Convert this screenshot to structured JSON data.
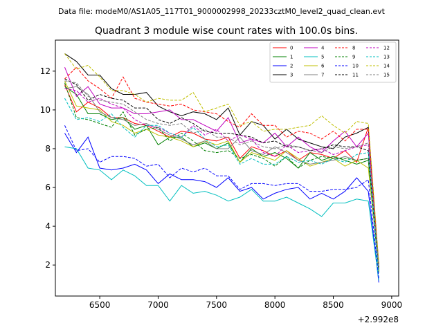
{
  "header": {
    "data_file": "Data file: modeM0/AS1A05_117T01_9000002998_20233cztM0_level2_quad_clean.evt"
  },
  "chart_data": {
    "type": "line",
    "title": "Quadrant 3 module wise count rates with 100.0s bins.",
    "xlabel": "",
    "ylabel": "",
    "x_offset_label": "+2.992e8",
    "x_offset": 299200000,
    "xlim": [
      6120,
      9060
    ],
    "ylim": [
      0.4,
      13.6
    ],
    "x_ticks": [
      6500,
      7000,
      7500,
      8000,
      8500,
      9000
    ],
    "y_ticks": [
      2,
      4,
      6,
      8,
      10,
      12
    ],
    "x": [
      6200,
      6300,
      6400,
      6500,
      6600,
      6700,
      6800,
      6900,
      7000,
      7100,
      7200,
      7300,
      7400,
      7500,
      7600,
      7700,
      7800,
      7900,
      8000,
      8100,
      8200,
      8300,
      8400,
      8500,
      8600,
      8700,
      8800,
      8890
    ],
    "legend_position": "top-right",
    "series": [
      {
        "name": "0",
        "color": "#ff0000",
        "dash": false,
        "values": [
          11.3,
          9.9,
          10.4,
          10.1,
          9.6,
          9.6,
          9.3,
          9.2,
          8.9,
          8.6,
          8.9,
          8.8,
          8.5,
          8.4,
          8.6,
          7.5,
          8.1,
          7.9,
          7.6,
          7.9,
          7.4,
          7.8,
          7.7,
          7.5,
          7.9,
          7.3,
          9.1,
          1.7
        ]
      },
      {
        "name": "1",
        "color": "#008000",
        "dash": false,
        "values": [
          11.2,
          10.8,
          9.8,
          9.8,
          9.5,
          9.6,
          9.0,
          9.2,
          8.2,
          8.6,
          8.6,
          8.1,
          8.3,
          8.0,
          8.3,
          7.3,
          8.0,
          7.6,
          7.8,
          7.5,
          7.0,
          7.8,
          7.4,
          7.6,
          7.4,
          7.2,
          7.4,
          1.6
        ]
      },
      {
        "name": "2",
        "color": "#0000ff",
        "dash": false,
        "values": [
          8.8,
          7.8,
          8.6,
          7.0,
          6.9,
          7.0,
          7.2,
          6.9,
          6.2,
          6.7,
          6.4,
          6.4,
          6.3,
          6.0,
          6.5,
          5.8,
          6.0,
          5.4,
          5.7,
          5.9,
          6.0,
          5.4,
          5.7,
          5.4,
          5.8,
          6.5,
          5.8,
          1.1
        ]
      },
      {
        "name": "3",
        "color": "#000000",
        "dash": false,
        "values": [
          12.9,
          12.5,
          11.8,
          11.8,
          11.1,
          10.8,
          10.8,
          10.9,
          10.2,
          9.9,
          9.7,
          9.9,
          9.8,
          9.5,
          10.1,
          8.7,
          9.4,
          9.2,
          8.5,
          9.0,
          8.5,
          8.3,
          8.1,
          8.0,
          8.6,
          8.8,
          9.1,
          1.9
        ]
      },
      {
        "name": "4",
        "color": "#bf00bf",
        "dash": false,
        "values": [
          12.2,
          10.7,
          11.2,
          10.3,
          10.1,
          10.1,
          9.8,
          9.8,
          9.9,
          10.0,
          9.5,
          9.5,
          9.2,
          8.9,
          9.6,
          8.3,
          8.5,
          8.3,
          8.8,
          8.1,
          8.6,
          8.1,
          7.8,
          8.4,
          8.9,
          8.1,
          8.8,
          1.8
        ]
      },
      {
        "name": "5",
        "color": "#00bfbf",
        "dash": false,
        "values": [
          8.1,
          8.0,
          7.0,
          6.9,
          6.4,
          6.9,
          6.6,
          6.1,
          6.1,
          5.3,
          6.1,
          5.7,
          5.8,
          5.6,
          5.3,
          5.5,
          5.9,
          5.3,
          5.3,
          5.5,
          5.2,
          4.9,
          4.5,
          5.2,
          5.2,
          5.4,
          5.3,
          1.2
        ]
      },
      {
        "name": "6",
        "color": "#bfbf00",
        "dash": false,
        "values": [
          11.5,
          10.2,
          10.1,
          10.0,
          9.4,
          9.2,
          8.8,
          9.0,
          8.7,
          8.6,
          8.4,
          8.1,
          8.4,
          8.2,
          8.4,
          7.3,
          7.8,
          7.6,
          7.4,
          7.9,
          7.5,
          7.1,
          7.3,
          7.5,
          7.1,
          7.4,
          7.0,
          1.9
        ]
      },
      {
        "name": "7",
        "color": "#808080",
        "dash": false,
        "values": [
          11.1,
          11.2,
          10.8,
          9.9,
          9.6,
          9.5,
          9.2,
          9.3,
          9.0,
          8.7,
          8.5,
          8.2,
          8.4,
          8.0,
          8.0,
          8.6,
          7.9,
          7.7,
          8.1,
          7.8,
          7.4,
          7.2,
          7.3,
          7.4,
          7.6,
          7.4,
          7.5,
          1.8
        ]
      },
      {
        "name": "8",
        "color": "#ff0000",
        "dash": true,
        "values": [
          11.6,
          12.2,
          11.5,
          11.1,
          10.6,
          11.7,
          10.6,
          10.4,
          10.3,
          10.2,
          10.3,
          10.0,
          9.9,
          9.8,
          9.4,
          9.1,
          9.8,
          9.2,
          9.2,
          8.6,
          8.9,
          8.8,
          8.5,
          8.9,
          8.4,
          9.0,
          9.0,
          2.0
        ]
      },
      {
        "name": "9",
        "color": "#008000",
        "dash": true,
        "values": [
          11.4,
          9.6,
          9.5,
          9.3,
          9.1,
          9.9,
          8.7,
          9.0,
          9.1,
          8.4,
          8.8,
          8.4,
          7.9,
          7.8,
          7.9,
          7.5,
          7.7,
          7.5,
          7.1,
          7.6,
          7.0,
          7.4,
          7.6,
          7.5,
          7.5,
          7.4,
          7.5,
          1.7
        ]
      },
      {
        "name": "10",
        "color": "#0000ff",
        "dash": true,
        "values": [
          9.2,
          7.9,
          8.0,
          7.3,
          7.6,
          7.6,
          7.5,
          7.1,
          7.2,
          6.5,
          7.0,
          6.8,
          7.0,
          6.6,
          6.6,
          5.9,
          6.2,
          6.2,
          6.1,
          6.2,
          6.2,
          5.8,
          5.8,
          5.9,
          5.9,
          6.0,
          6.4,
          1.3
        ]
      },
      {
        "name": "11",
        "color": "#000000",
        "dash": true,
        "values": [
          11.6,
          11.3,
          10.5,
          10.8,
          10.6,
          10.5,
          10.1,
          10.1,
          9.5,
          9.3,
          9.6,
          9.3,
          8.9,
          8.8,
          8.8,
          8.7,
          8.6,
          8.3,
          8.4,
          8.1,
          8.1,
          7.9,
          8.0,
          8.2,
          8.1,
          8.1,
          7.9,
          1.9
        ]
      },
      {
        "name": "12",
        "color": "#bf00bf",
        "dash": true,
        "values": [
          11.1,
          11.0,
          10.4,
          10.6,
          10.3,
          10.1,
          9.5,
          9.2,
          9.1,
          8.8,
          8.6,
          9.2,
          8.7,
          9.0,
          8.4,
          8.7,
          8.5,
          7.8,
          7.6,
          8.2,
          7.8,
          7.9,
          8.0,
          7.7,
          7.9,
          8.1,
          8.2,
          1.9
        ]
      },
      {
        "name": "13",
        "color": "#00bfbf",
        "dash": true,
        "values": [
          10.6,
          9.5,
          9.6,
          9.4,
          9.8,
          9.1,
          8.6,
          9.2,
          9.2,
          8.8,
          8.6,
          9.1,
          8.5,
          8.1,
          8.2,
          7.2,
          7.5,
          7.2,
          7.2,
          7.6,
          7.3,
          7.4,
          7.2,
          7.5,
          7.3,
          7.7,
          7.8,
          1.6
        ]
      },
      {
        "name": "14",
        "color": "#bfbf00",
        "dash": true,
        "values": [
          12.9,
          12.1,
          12.3,
          11.7,
          11.0,
          11.0,
          10.8,
          10.4,
          10.6,
          10.5,
          10.5,
          10.9,
          9.9,
          10.1,
          10.3,
          9.2,
          9.4,
          8.9,
          9.0,
          9.0,
          9.1,
          9.2,
          9.7,
          9.2,
          8.8,
          9.4,
          9.3,
          2.1
        ]
      },
      {
        "name": "15",
        "color": "#808080",
        "dash": true,
        "values": [
          11.5,
          11.4,
          10.7,
          10.5,
          10.4,
          10.3,
          9.9,
          9.5,
          9.3,
          9.2,
          9.3,
          8.8,
          9.0,
          8.6,
          8.6,
          8.2,
          8.4,
          8.1,
          8.0,
          8.2,
          8.1,
          7.9,
          7.8,
          8.1,
          8.0,
          8.1,
          8.3,
          1.9
        ]
      }
    ]
  }
}
